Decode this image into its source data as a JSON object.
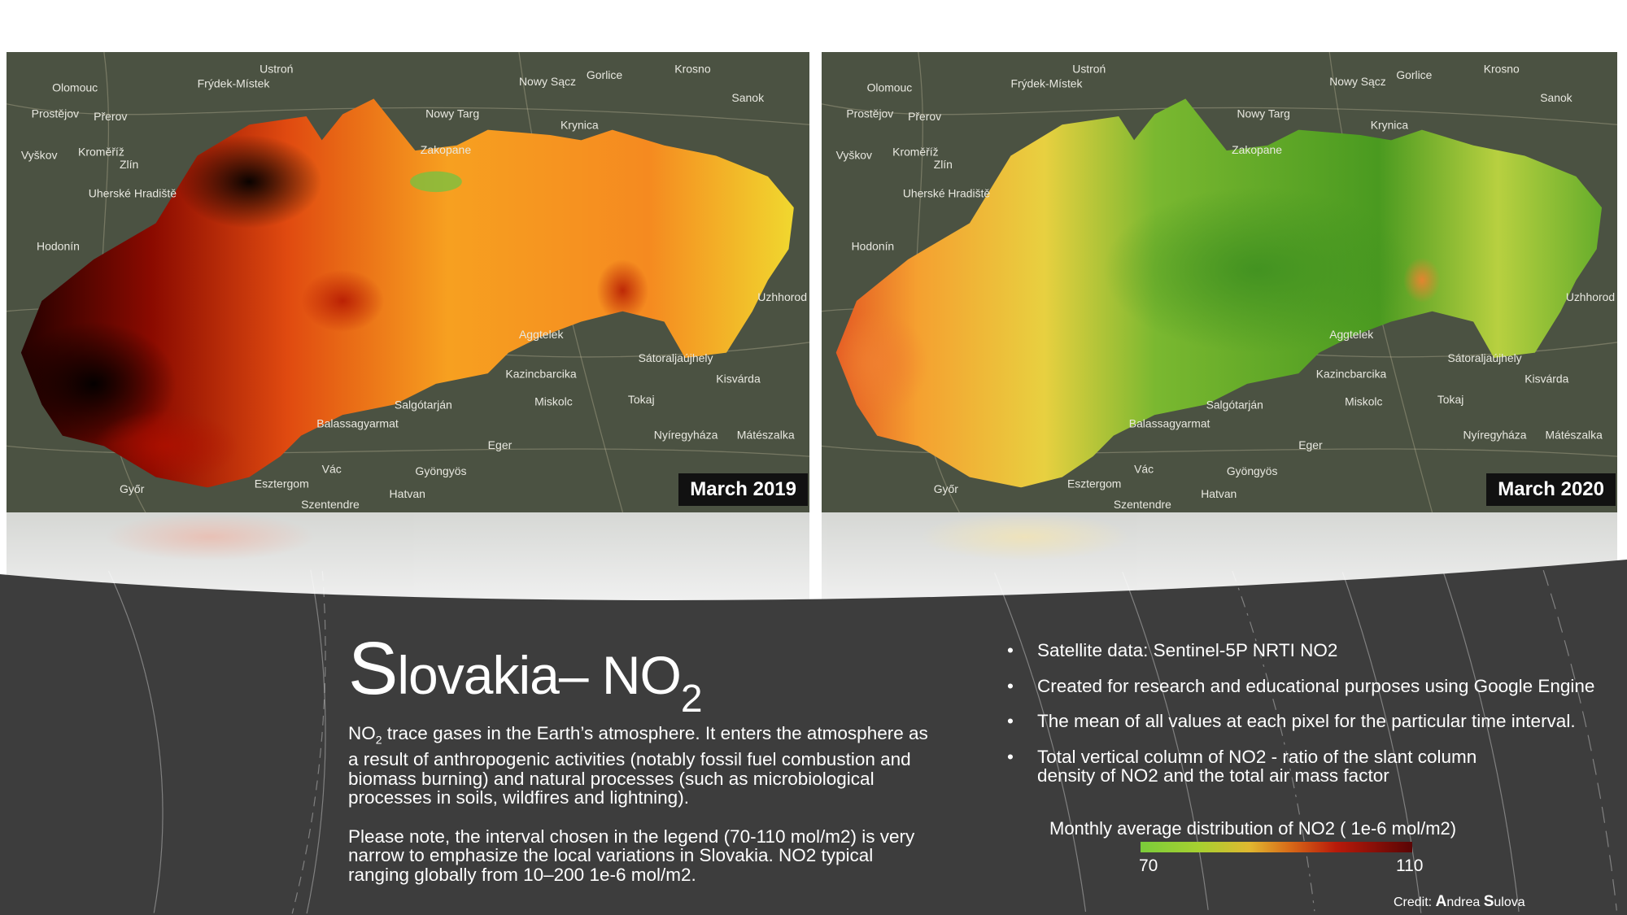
{
  "maps": [
    {
      "date_label": "March 2019",
      "variant": "2019"
    },
    {
      "date_label": "March 2020",
      "variant": "2020"
    }
  ],
  "map_labels": [
    "Olomouc",
    "Frýdek-Místek",
    "Ustroń",
    "Nowy Sącz",
    "Gorlice",
    "Krosno",
    "Sanok",
    "Přerov",
    "Prostějov",
    "Kroměříž",
    "Zlín",
    "Vyškov",
    "Uherské Hradiště",
    "Hodonín",
    "Nowy Targ",
    "Zakopane",
    "Krynica",
    "Aggtelek",
    "Kazincbarcika",
    "Miskolc",
    "Tokaj",
    "Salgótarján",
    "Balassagyarmat",
    "Eger",
    "Gyöngyös",
    "Hatvan",
    "Vác",
    "Esztergom",
    "Győr",
    "Szentendre",
    "Nyíregyháza",
    "Sátoraljaújhely",
    "Kisvárda",
    "Mátészalka",
    "Uzhhorod"
  ],
  "title": {
    "first_letter": "S",
    "rest": "lovakia– NO",
    "subscript": "2"
  },
  "body": {
    "p1_prefix": "NO",
    "p1_sub": "2",
    "p1_text": " trace gases in the Earth’s atmosphere. It enters the atmosphere as a result of anthropogenic activities (notably fossil fuel combustion and biomass burning) and natural processes (such as microbiological processes in soils, wildfires and lightning).",
    "p2": "Please note, the interval chosen in the legend (70-110 mol/m2) is very narrow to emphasize the local variations in Slovakia. NO2 typical ranging globally from 10–200 1e-6 mol/m2."
  },
  "bullets": [
    "Satellite data: Sentinel-5P NRTI NO2",
    "Created for research and educational purposes using Google Engine",
    "The mean of all values at each pixel for the particular time interval.",
    "Total vertical column of NO2 - ratio of the slant column density of NO2 and the total air mass factor"
  ],
  "legend": {
    "title": "Monthly average distribution  of  NO2 ( 1e-6 mol/m2)",
    "min": "70",
    "max": "110",
    "colors": [
      "#7acc3a",
      "#e0b830",
      "#d86a18",
      "#b81a0a",
      "#5a0505"
    ]
  },
  "credit": {
    "prefix": "Credit: ",
    "first_initial": "A",
    "first_rest": "ndrea ",
    "last_initial": "S",
    "last_rest": "ulova"
  },
  "colors": {
    "panel": "#3d3d3d",
    "text": "#ffffff"
  }
}
